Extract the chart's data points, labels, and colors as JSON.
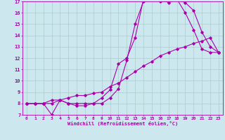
{
  "xlabel": "Windchill (Refroidissement éolien,°C)",
  "bg_color": "#cce8ee",
  "grid_color": "#aacccc",
  "line_color": "#aa00aa",
  "xlim": [
    -0.5,
    23.5
  ],
  "ylim": [
    7,
    17
  ],
  "xticks": [
    0,
    1,
    2,
    3,
    4,
    5,
    6,
    7,
    8,
    9,
    10,
    11,
    12,
    13,
    14,
    15,
    16,
    17,
    18,
    19,
    20,
    21,
    22,
    23
  ],
  "yticks": [
    7,
    8,
    9,
    10,
    11,
    12,
    13,
    14,
    15,
    16,
    17
  ],
  "line1_x": [
    0,
    1,
    2,
    3,
    4,
    5,
    6,
    7,
    8,
    9,
    10,
    11,
    12,
    13,
    14,
    15,
    16,
    17,
    18,
    19,
    20,
    21,
    22,
    23
  ],
  "line1_y": [
    8.0,
    8.0,
    8.0,
    7.0,
    8.3,
    8.0,
    8.0,
    8.0,
    8.0,
    8.5,
    9.2,
    11.5,
    12.0,
    13.8,
    17.2,
    17.3,
    17.2,
    16.9,
    17.2,
    16.9,
    16.2,
    14.3,
    13.0,
    12.5
  ],
  "line2_x": [
    0,
    1,
    2,
    3,
    4,
    5,
    6,
    7,
    8,
    9,
    10,
    11,
    12,
    13,
    14,
    15,
    16,
    17,
    18,
    19,
    20,
    21,
    22,
    23
  ],
  "line2_y": [
    8.0,
    8.0,
    8.0,
    8.3,
    8.3,
    8.0,
    7.8,
    7.8,
    8.0,
    8.0,
    8.5,
    9.3,
    11.8,
    15.0,
    17.0,
    17.3,
    17.0,
    17.0,
    17.2,
    16.0,
    14.5,
    12.8,
    12.5,
    12.5
  ],
  "line3_x": [
    0,
    1,
    2,
    3,
    4,
    5,
    6,
    7,
    8,
    9,
    10,
    11,
    12,
    13,
    14,
    15,
    16,
    17,
    18,
    19,
    20,
    21,
    22,
    23
  ],
  "line3_y": [
    8.0,
    8.0,
    8.0,
    8.0,
    8.3,
    8.5,
    8.7,
    8.7,
    8.9,
    9.0,
    9.5,
    9.8,
    10.3,
    10.8,
    11.3,
    11.7,
    12.2,
    12.5,
    12.8,
    13.0,
    13.3,
    13.5,
    13.8,
    12.5
  ]
}
